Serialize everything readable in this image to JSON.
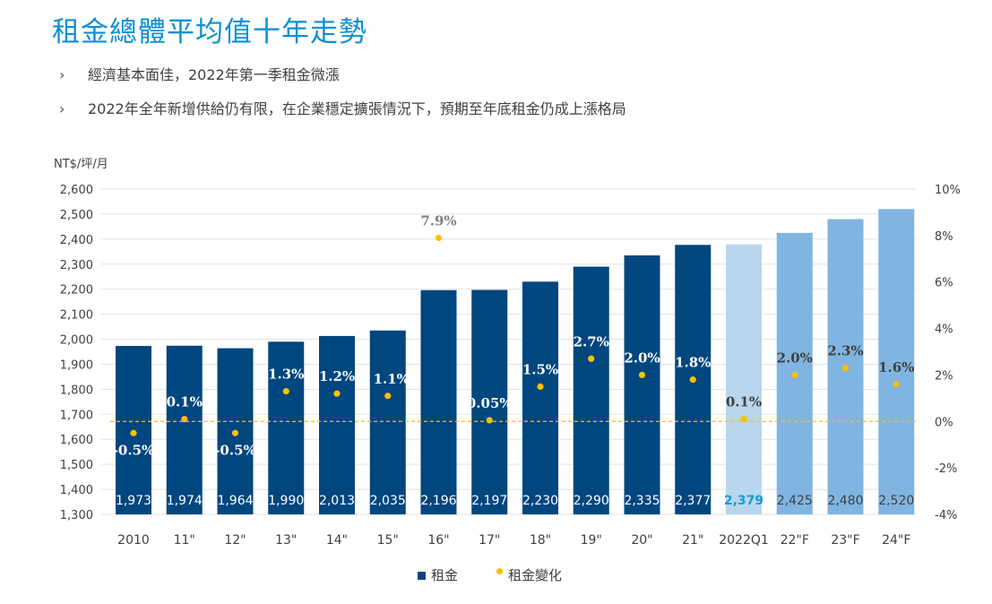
{
  "title": "租金總體平均值十年走勢",
  "bullets": [
    {
      "marker": "›",
      "text": "經濟基本面佳，2022年第一季租金微漲"
    },
    {
      "marker": "›",
      "text": "2022年全年新增供給仍有限，在企業穩定擴張情況下，預期至年底租金仍成上漲格局"
    }
  ],
  "chart_data": {
    "type": "bar",
    "ylabel": "NT$/坪/月",
    "ylim": [
      1300,
      2600
    ],
    "y_ticks": [
      "1,300",
      "1,400",
      "1,500",
      "1,600",
      "1,700",
      "1,800",
      "1,900",
      "2,000",
      "2,100",
      "2,200",
      "2,300",
      "2,400",
      "2,500",
      "2,600"
    ],
    "y2lim": [
      -4,
      10
    ],
    "y2_ticks": [
      "-4%",
      "-2%",
      "0%",
      "2%",
      "4%",
      "6%",
      "8%",
      "10%"
    ],
    "grid": true,
    "legend_placement": "bottom",
    "categories": [
      "2010",
      "11\"",
      "12\"",
      "13\"",
      "14\"",
      "15\"",
      "16\"",
      "17\"",
      "18\"",
      "19\"",
      "20\"",
      "21\"",
      "2022Q1",
      "22\"F",
      "23\"F",
      "24\"F"
    ],
    "series": [
      {
        "name": "租金",
        "type": "bar",
        "axis": "left",
        "values": [
          1973,
          1974,
          1964,
          1990,
          2013,
          2035,
          2196,
          2197,
          2230,
          2290,
          2335,
          2377,
          2379,
          2425,
          2480,
          2520
        ],
        "labels": [
          "1,973",
          "1,974",
          "1,964",
          "1,990",
          "2,013",
          "2,035",
          "2,196",
          "2,197",
          "2,230",
          "2,290",
          "2,335",
          "2,377",
          "2,379",
          "2,425",
          "2,480",
          "2,520"
        ]
      },
      {
        "name": "租金變化",
        "type": "scatter",
        "axis": "right",
        "values": [
          -0.5,
          0.1,
          -0.5,
          1.3,
          1.2,
          1.1,
          7.9,
          0.05,
          1.5,
          2.7,
          2.0,
          1.8,
          0.1,
          2.0,
          2.3,
          1.6
        ],
        "labels": [
          "-0.5%",
          "0.1%",
          "-0.5%",
          "1.3%",
          "1.2%",
          "1.1%",
          "7.9%",
          "0.05%",
          "1.5%",
          "2.7%",
          "2.0%",
          "1.8%",
          "0.1%",
          "2.0%",
          "2.3%",
          "1.6%"
        ]
      }
    ],
    "reference_line": 0,
    "colors": {
      "actual": "#00467f",
      "quarter": "#b8d7ee",
      "forecast": "#80b5e1",
      "change": "#ffc000",
      "quarter_label": "#1a9ad6"
    }
  }
}
